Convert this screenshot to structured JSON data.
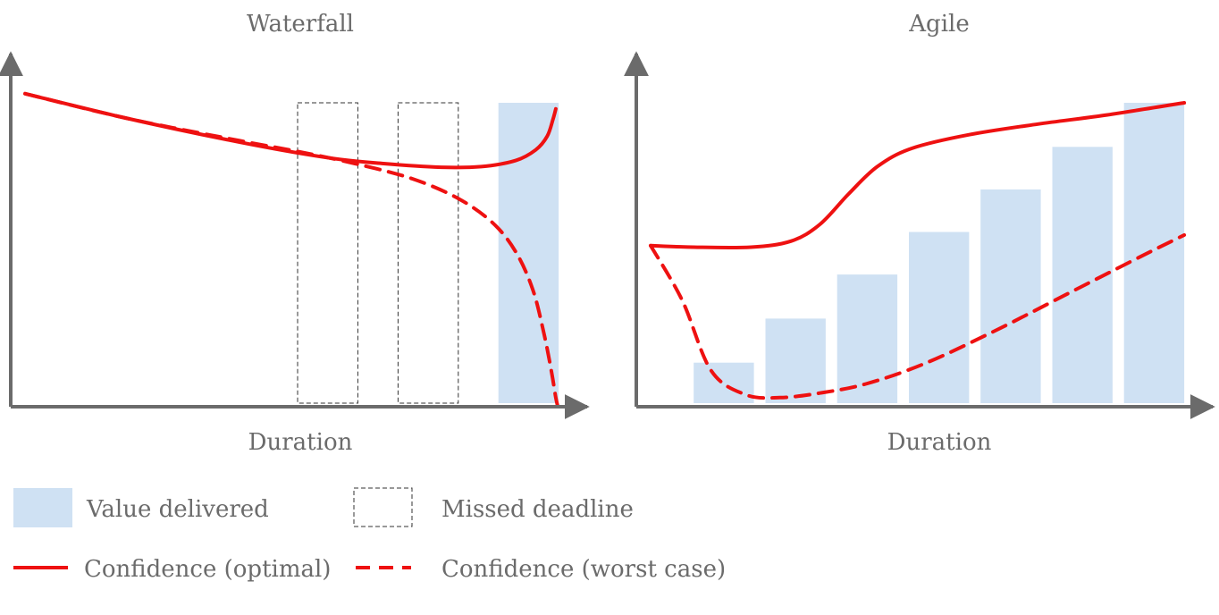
{
  "colors": {
    "value_bar": "#cfe1f3",
    "confidence": "#ee1111",
    "axis": "#6b6b6b",
    "deadline_box": "#333333",
    "text": "#6b6b6b"
  },
  "chart_data": [
    {
      "type": "bar+line",
      "title": "Waterfall",
      "xlabel": "Duration",
      "ylabel": "",
      "xlim": [
        0,
        100
      ],
      "ylim": [
        0,
        100
      ],
      "grid": false,
      "value_delivered": [
        {
          "x_start": 85,
          "x_end": 95.5,
          "value": 100
        }
      ],
      "missed_deadlines": [
        {
          "x_start": 50,
          "x_end": 60.5
        },
        {
          "x_start": 67.5,
          "x_end": 78
        }
      ],
      "series": [
        {
          "style": "solid",
          "x": [
            2.5,
            20,
            40,
            55,
            65,
            75,
            82,
            88,
            91.5,
            93.5,
            94.5,
            95
          ],
          "y": [
            103,
            95,
            87,
            82,
            80,
            78.8,
            79,
            81,
            84.5,
            89,
            94.5,
            98
          ]
        },
        {
          "style": "dashed",
          "x": [
            2.5,
            20,
            40,
            50,
            60,
            70,
            78,
            84,
            88,
            91,
            93,
            94.3,
            95,
            95.3
          ],
          "y": [
            103,
            95,
            87.5,
            84,
            80,
            75,
            68.5,
            60.5,
            51,
            38.5,
            23.5,
            11,
            3,
            0.5
          ]
        }
      ]
    },
    {
      "type": "bar+line",
      "title": "Agile",
      "xlabel": "Duration",
      "ylabel": "",
      "xlim": [
        0,
        100
      ],
      "ylim": [
        0,
        100
      ],
      "grid": false,
      "value_delivered": [
        {
          "x_start": 10,
          "x_end": 20.5,
          "value": 14.5
        },
        {
          "x_start": 22.5,
          "x_end": 33,
          "value": 29
        },
        {
          "x_start": 35,
          "x_end": 45.5,
          "value": 43.5
        },
        {
          "x_start": 47.5,
          "x_end": 58,
          "value": 57.5
        },
        {
          "x_start": 60,
          "x_end": 70.5,
          "value": 71.5
        },
        {
          "x_start": 72.5,
          "x_end": 83,
          "value": 85.5
        },
        {
          "x_start": 85,
          "x_end": 95.5,
          "value": 100
        }
      ],
      "series": [
        {
          "style": "solid",
          "x": [
            2.5,
            10,
            20,
            27,
            32,
            37,
            42,
            48,
            58,
            70,
            82,
            95.5
          ],
          "y": [
            53,
            52.5,
            52.5,
            54.5,
            60,
            70,
            79,
            85,
            89.5,
            93,
            96,
            100
          ]
        },
        {
          "style": "dashed",
          "x": [
            2.5,
            8,
            13,
            19,
            25,
            32,
            40,
            50,
            62,
            75,
            88,
            95.5
          ],
          "y": [
            53,
            35,
            12,
            4,
            3,
            4.5,
            7.5,
            14,
            24.5,
            37,
            49.5,
            56.5
          ]
        }
      ]
    }
  ],
  "legend": {
    "items": [
      {
        "key": "value-delivered",
        "label": "Value delivered"
      },
      {
        "key": "missed-deadline",
        "label": "Missed deadline"
      },
      {
        "key": "confidence-optimal",
        "label": "Confidence (optimal)"
      },
      {
        "key": "confidence-worst-case",
        "label": "Confidence (worst case)"
      }
    ]
  }
}
